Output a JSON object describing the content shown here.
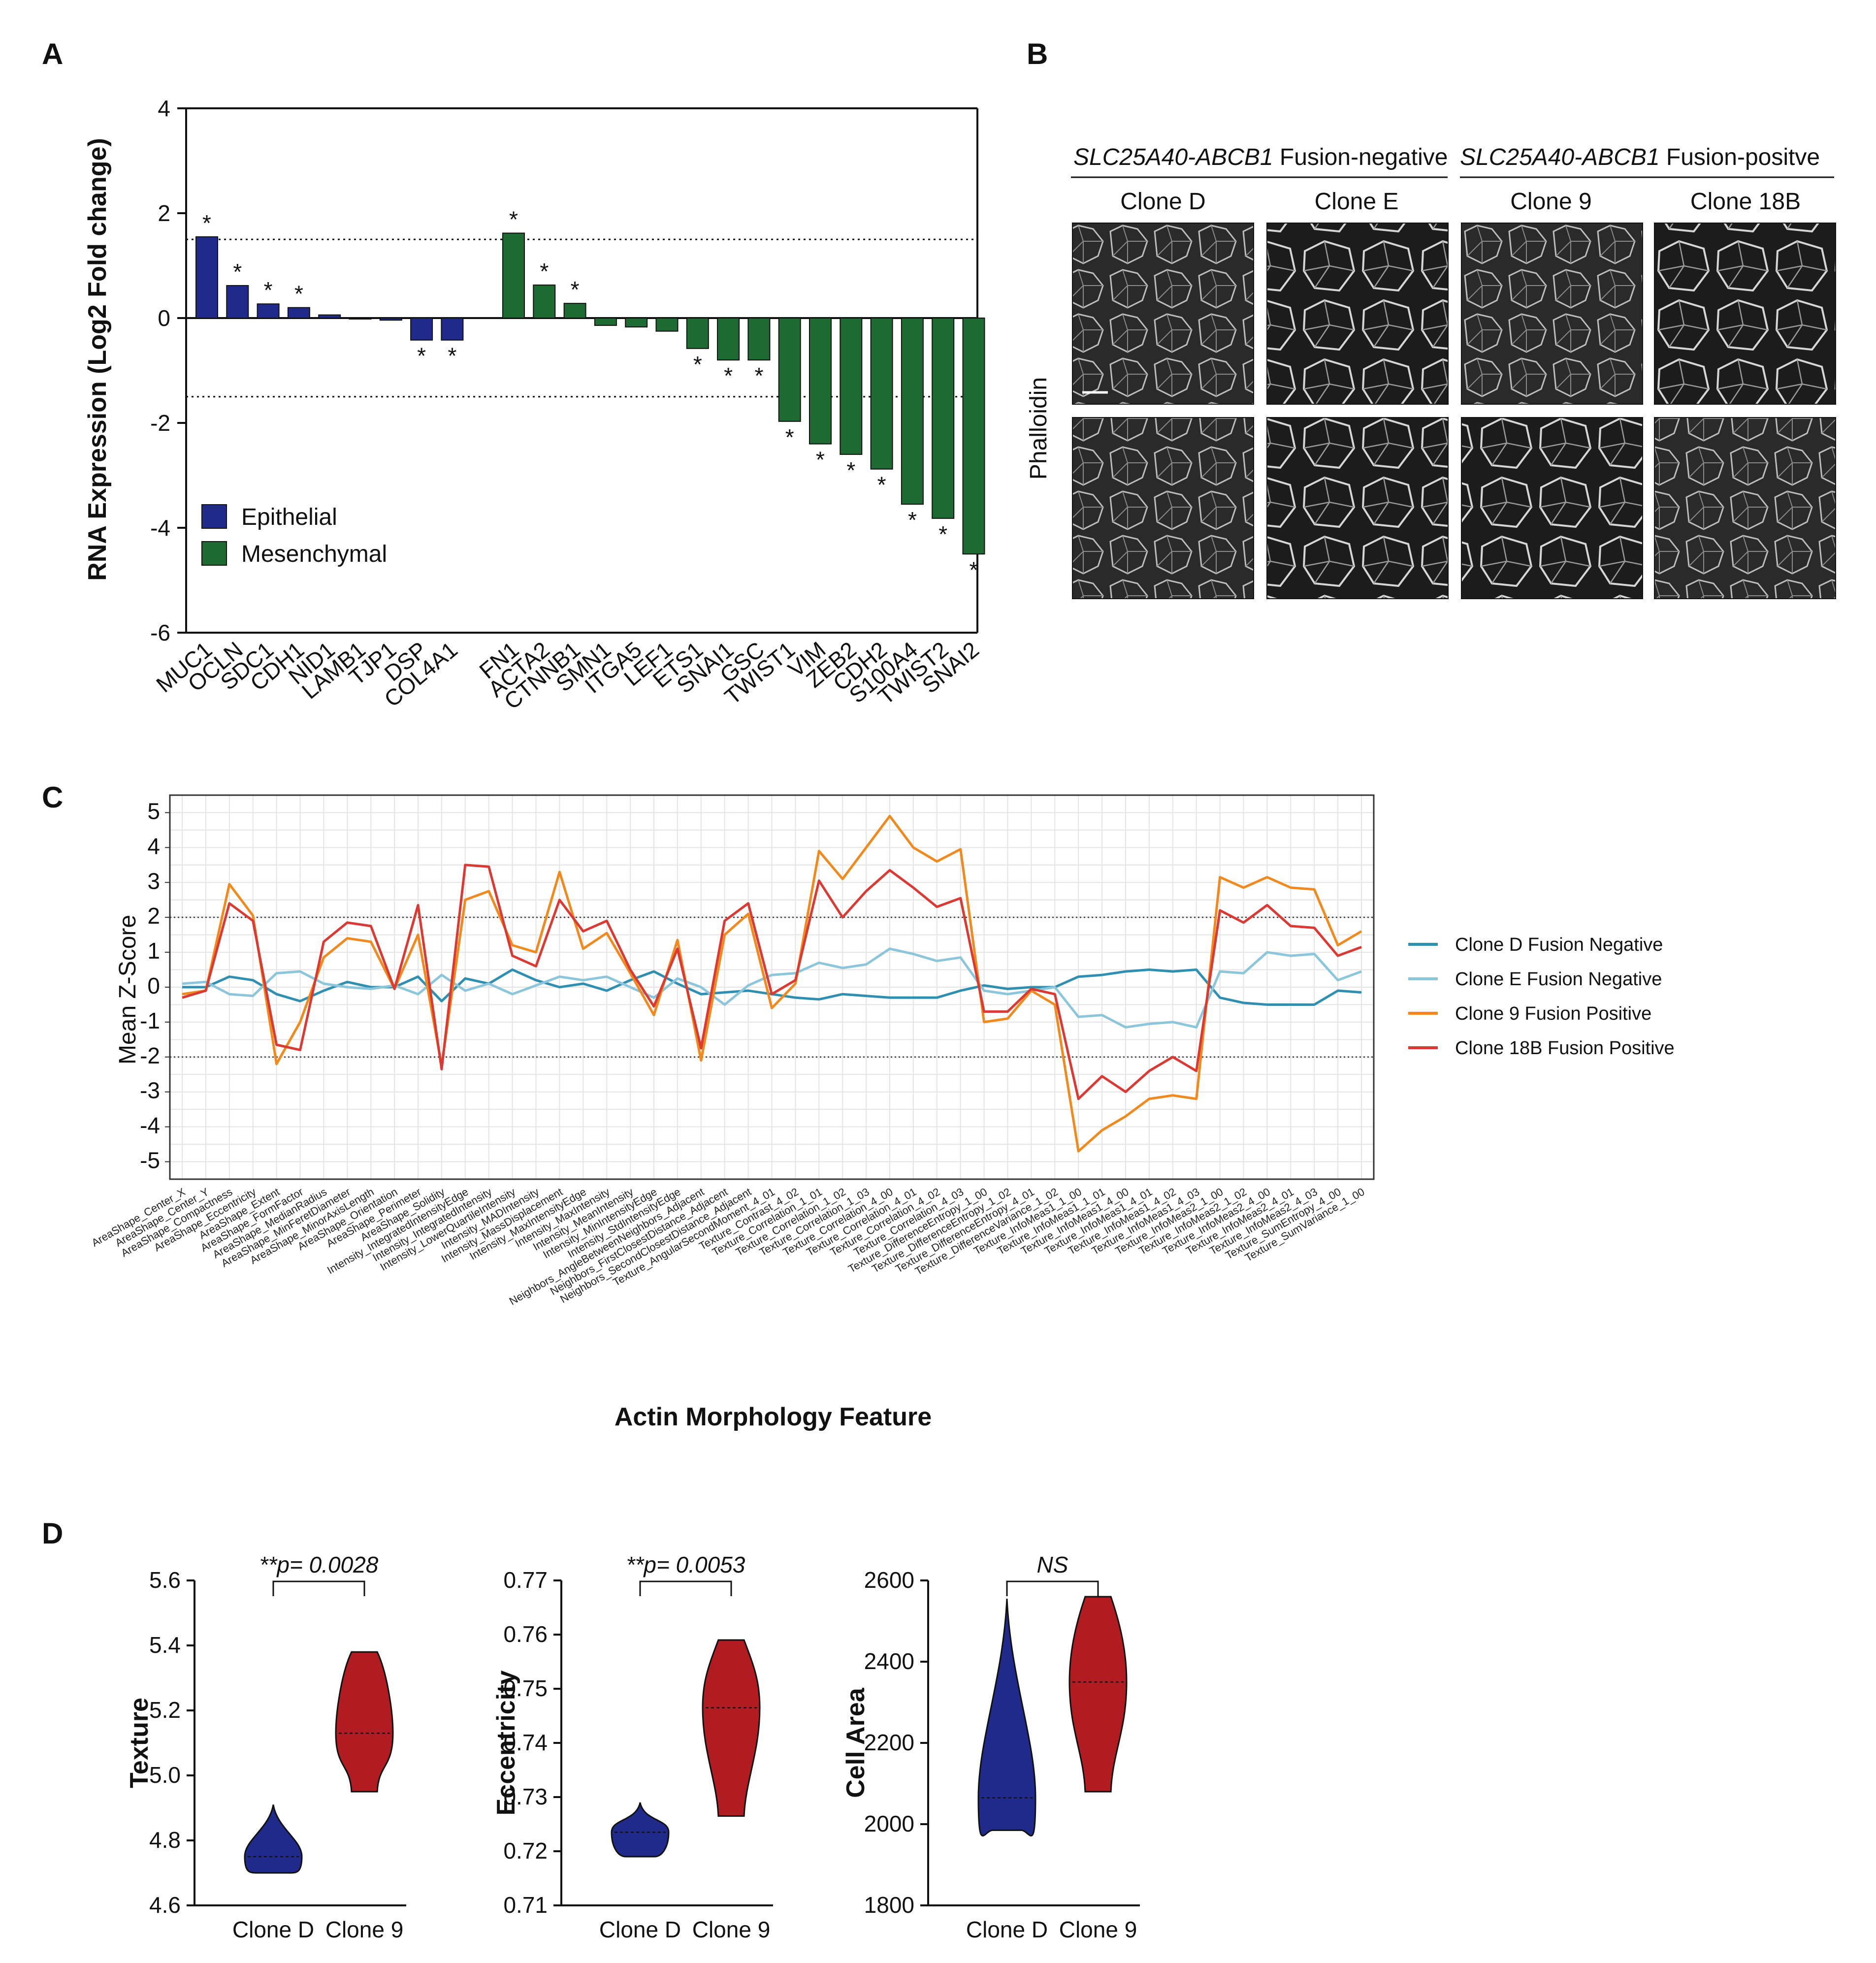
{
  "panels": {
    "A": "A",
    "B": "B",
    "C": "C",
    "D": "D"
  },
  "chart_data": [
    {
      "id": "A",
      "type": "bar",
      "ylabel": "RNA Expression (Log2 Fold change)",
      "ylim": [
        -6,
        4
      ],
      "yticks": [
        4,
        2,
        0,
        -2,
        -4,
        -6
      ],
      "threshold_lines": [
        1.5,
        -1.5
      ],
      "legend": [
        {
          "name": "Epithelial",
          "color": "#1f2a8a"
        },
        {
          "name": "Mesenchymal",
          "color": "#1d6b33"
        }
      ],
      "series": [
        {
          "name": "Epithelial",
          "color": "#1f2a8a",
          "categories": [
            "MUC1",
            "OCLN",
            "SDC1",
            "CDH1",
            "NID1",
            "LAMB1",
            "TJP1",
            "DSP",
            "COL4A1"
          ],
          "values": [
            1.55,
            0.62,
            0.27,
            0.2,
            0.06,
            0.0,
            -0.04,
            -0.42,
            -0.42
          ],
          "significant": [
            true,
            true,
            true,
            true,
            false,
            false,
            false,
            true,
            true
          ]
        },
        {
          "name": "Mesenchymal",
          "color": "#1d6b33",
          "categories": [
            "FN1",
            "ACTA2",
            "CTNNB1",
            "SMN1",
            "ITGA5",
            "LEF1",
            "ETS1",
            "SNAI1",
            "GSC",
            "TWIST1",
            "VIM",
            "ZEB2",
            "CDH2",
            "S100A4",
            "TWIST2",
            "SNAI2"
          ],
          "values": [
            1.62,
            0.63,
            0.28,
            -0.14,
            -0.17,
            -0.25,
            -0.58,
            -0.8,
            -0.8,
            -1.97,
            -2.4,
            -2.6,
            -2.88,
            -3.55,
            -3.82,
            -4.5
          ],
          "significant": [
            true,
            true,
            true,
            false,
            false,
            false,
            true,
            true,
            true,
            true,
            true,
            true,
            true,
            true,
            true,
            true
          ]
        }
      ],
      "star": "*"
    },
    {
      "id": "C",
      "type": "line",
      "title": "",
      "xlabel": "Actin Morphology Feature",
      "ylabel": "Mean Z-Score",
      "ylim": [
        -5.5,
        5.5
      ],
      "yticks": [
        5,
        4,
        3,
        2,
        1,
        0,
        -1,
        -2,
        -3,
        -4,
        -5
      ],
      "threshold_lines": [
        2,
        -2
      ],
      "x": [
        "AreaShape_Center_X",
        "AreaShape_Center_Y",
        "AreaShape_Compactness",
        "AreaShape_Eccentricity",
        "AreaShape_Extent",
        "AreaShape_FormFactor",
        "AreaShape_MedianRadius",
        "AreaShape_MinFeretDiameter",
        "AreaShape_MinorAxisLength",
        "AreaShape_Orientation",
        "AreaShape_Perimeter",
        "AreaShape_Solidity",
        "Intensity_IntegratedIntensityEdge",
        "Intensity_IntegratedIntensity",
        "Intensity_LowerQuartileIntensity",
        "Intensity_MADIntensity",
        "Intensity_MassDisplacement",
        "Intensity_MaxIntensityEdge",
        "Intensity_MaxIntensity",
        "Intensity_MeanIntensity",
        "Intensity_MinIntensityEdge",
        "Intensity_StdIntensityEdge",
        "Neighbors_AngleBetweenNeighbors_Adjacent",
        "Neighbors_FirstClosestDistance_Adjacent",
        "Neighbors_SecondClosestDistance_Adjacent",
        "Texture_AngularSecondMoment_4_01",
        "Texture_Contrast_4_02",
        "Texture_Correlation_1_01",
        "Texture_Correlation_1_02",
        "Texture_Correlation_1_03",
        "Texture_Correlation_4_00",
        "Texture_Correlation_4_01",
        "Texture_Correlation_4_02",
        "Texture_Correlation_4_03",
        "Texture_DifferenceEntropy_1_00",
        "Texture_DifferenceEntropy_1_02",
        "Texture_DifferenceEntropy_4_01",
        "Texture_DifferenceVariance_1_02",
        "Texture_InfoMeas1_1_00",
        "Texture_InfoMeas1_1_01",
        "Texture_InfoMeas1_4_00",
        "Texture_InfoMeas1_4_01",
        "Texture_InfoMeas1_4_02",
        "Texture_InfoMeas1_4_03",
        "Texture_InfoMeas2_1_00",
        "Texture_InfoMeas2_1_02",
        "Texture_InfoMeas2_4_00",
        "Texture_InfoMeas2_4_01",
        "Texture_InfoMeas2_4_03",
        "Texture_SumEntropy_4_00",
        "Texture_SumVariance_1_00"
      ],
      "series": [
        {
          "name": "Clone D Fusion Negative",
          "color": "#2e8fb0",
          "values": [
            0.0,
            0.0,
            0.3,
            0.2,
            -0.2,
            -0.4,
            -0.1,
            0.15,
            0.0,
            0.0,
            0.3,
            -0.4,
            0.25,
            0.1,
            0.5,
            0.2,
            0.0,
            0.1,
            -0.1,
            0.2,
            0.45,
            0.1,
            -0.2,
            -0.15,
            -0.1,
            -0.2,
            -0.3,
            -0.35,
            -0.2,
            -0.25,
            -0.3,
            -0.3,
            -0.3,
            -0.1,
            0.05,
            -0.05,
            0.0,
            0.0,
            0.3,
            0.35,
            0.45,
            0.5,
            0.45,
            0.5,
            -0.3,
            -0.45,
            -0.5,
            -0.5,
            -0.5,
            -0.1,
            -0.15
          ]
        },
        {
          "name": "Clone E Fusion Negative",
          "color": "#8cc6da",
          "values": [
            0.1,
            0.15,
            -0.2,
            -0.25,
            0.4,
            0.45,
            0.1,
            0.0,
            -0.05,
            0.05,
            -0.2,
            0.35,
            -0.1,
            0.1,
            -0.2,
            0.05,
            0.3,
            0.2,
            0.3,
            0.0,
            -0.3,
            0.25,
            0.0,
            -0.5,
            0.05,
            0.35,
            0.4,
            0.7,
            0.55,
            0.65,
            1.1,
            0.95,
            0.75,
            0.85,
            -0.1,
            -0.2,
            -0.1,
            0.0,
            -0.85,
            -0.8,
            -1.15,
            -1.05,
            -1.0,
            -1.15,
            0.45,
            0.4,
            1.0,
            0.9,
            0.95,
            0.2,
            0.45
          ]
        },
        {
          "name": "Clone 9 Fusion Positive",
          "color": "#f08a1e",
          "values": [
            -0.2,
            -0.1,
            2.95,
            2.05,
            -2.2,
            -1.0,
            0.85,
            1.4,
            1.3,
            -0.05,
            1.5,
            -2.25,
            2.5,
            2.75,
            1.2,
            1.0,
            3.3,
            1.1,
            1.55,
            0.4,
            -0.8,
            1.35,
            -2.1,
            1.5,
            2.1,
            -0.6,
            0.1,
            3.9,
            3.1,
            4.0,
            4.9,
            4.0,
            3.6,
            3.95,
            -1.0,
            -0.9,
            -0.1,
            -0.5,
            -4.7,
            -4.1,
            -3.7,
            -3.2,
            -3.1,
            -3.2,
            3.15,
            2.85,
            3.15,
            2.85,
            2.8,
            1.2,
            1.6
          ]
        },
        {
          "name": "Clone 18B Fusion Positive",
          "color": "#d93a34",
          "values": [
            -0.3,
            -0.1,
            2.4,
            1.9,
            -1.65,
            -1.8,
            1.3,
            1.85,
            1.75,
            -0.05,
            2.35,
            -2.35,
            3.5,
            3.45,
            0.9,
            0.6,
            2.5,
            1.6,
            1.9,
            0.5,
            -0.55,
            1.1,
            -1.75,
            1.9,
            2.4,
            -0.2,
            0.2,
            3.05,
            2.0,
            2.75,
            3.35,
            2.85,
            2.3,
            2.55,
            -0.7,
            -0.7,
            -0.05,
            -0.2,
            -3.2,
            -2.55,
            -3.0,
            -2.4,
            -2.0,
            -2.4,
            2.2,
            1.85,
            2.35,
            1.75,
            1.7,
            0.9,
            1.15
          ]
        }
      ],
      "legend_position": "right"
    },
    {
      "id": "D1",
      "type": "violin",
      "ylabel": "Texture",
      "ylim": [
        4.6,
        5.6
      ],
      "yticks": [
        "5.6",
        "5.4",
        "5.2",
        "5.0",
        "4.8",
        "4.6"
      ],
      "categories": [
        "Clone D",
        "Clone 9"
      ],
      "groups": [
        {
          "name": "Clone D",
          "color": "#1f2a8a",
          "min": 4.7,
          "max": 4.91,
          "median": 4.75
        },
        {
          "name": "Clone 9",
          "color": "#b01c21",
          "min": 4.95,
          "max": 5.38,
          "median": 5.13
        }
      ],
      "significance": "**p= 0.0028"
    },
    {
      "id": "D2",
      "type": "violin",
      "ylabel": "Eccentricity",
      "ylim": [
        0.71,
        0.77
      ],
      "yticks": [
        "0.77",
        "0.76",
        "0.75",
        "0.74",
        "0.73",
        "0.72",
        "0.71"
      ],
      "categories": [
        "Clone D",
        "Clone 9"
      ],
      "groups": [
        {
          "name": "Clone D",
          "color": "#1f2a8a",
          "min": 0.719,
          "max": 0.729,
          "median": 0.7235
        },
        {
          "name": "Clone 9",
          "color": "#b01c21",
          "min": 0.7265,
          "max": 0.759,
          "median": 0.7465
        }
      ],
      "significance": "**p= 0.0053"
    },
    {
      "id": "D3",
      "type": "violin",
      "ylabel": "Cell Area",
      "ylim": [
        1800,
        2600
      ],
      "yticks": [
        "2600",
        "2400",
        "2200",
        "2000",
        "1800"
      ],
      "categories": [
        "Clone D",
        "Clone 9"
      ],
      "groups": [
        {
          "name": "Clone D",
          "color": "#1f2a8a",
          "min": 1985,
          "max": 2555,
          "median": 2065
        },
        {
          "name": "Clone 9",
          "color": "#b01c21",
          "min": 2080,
          "max": 2560,
          "median": 2350
        }
      ],
      "significance": "NS"
    }
  ],
  "panelB": {
    "header_neg_italic": "SLC25A40-ABCB1",
    "header_neg_rest": " Fusion-negative",
    "header_pos_italic": "SLC25A40-ABCB1",
    "header_pos_rest": " Fusion-positve",
    "columns": [
      "Clone D",
      "Clone E",
      "Clone 9",
      "Clone 18B"
    ],
    "row_label": "Phalloidin"
  },
  "colors": {
    "epithelial": "#1f2a8a",
    "mesenchymal": "#1d6b33",
    "clone9_violin": "#b01c21"
  }
}
